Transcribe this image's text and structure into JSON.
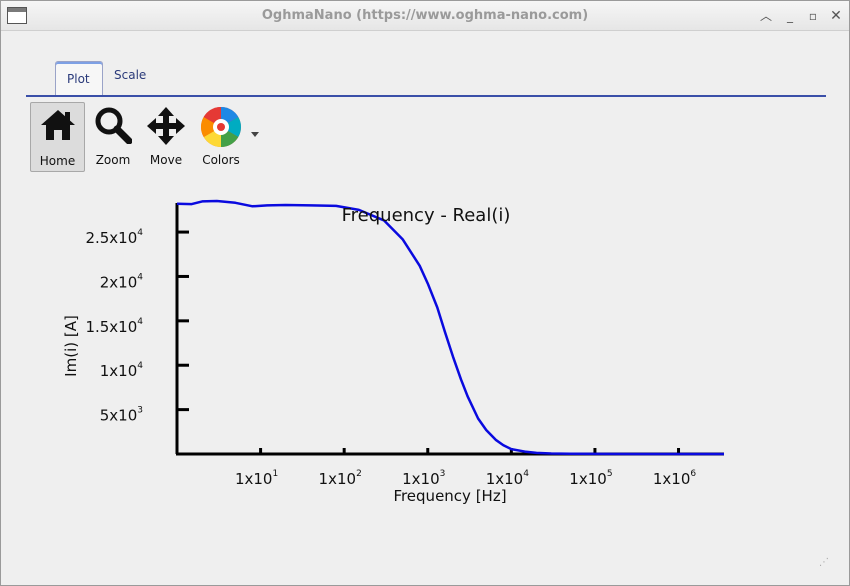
{
  "window": {
    "title": "OghmaNano (https://www.oghma-nano.com)"
  },
  "tabs": [
    {
      "label": "Plot",
      "active": true
    },
    {
      "label": "Scale",
      "active": false
    }
  ],
  "toolbar": {
    "home_label": "Home",
    "zoom_label": "Zoom",
    "move_label": "Move",
    "colors_label": "Colors"
  },
  "chart_data": {
    "type": "line",
    "title": "Frequency - Real(i)",
    "xlabel": "Frequency [Hz]",
    "ylabel": "Im(i) [A]",
    "x_scale": "log",
    "x_ticks": [
      {
        "base": "1x10",
        "exp": "1",
        "value": 10
      },
      {
        "base": "1x10",
        "exp": "2",
        "value": 100
      },
      {
        "base": "1x10",
        "exp": "3",
        "value": 1000
      },
      {
        "base": "1x10",
        "exp": "4",
        "value": 10000
      },
      {
        "base": "1x10",
        "exp": "5",
        "value": 100000
      },
      {
        "base": "1x10",
        "exp": "6",
        "value": 1000000
      }
    ],
    "y_ticks": [
      {
        "base": "5x10",
        "exp": "3",
        "value": 5000
      },
      {
        "base": "1x10",
        "exp": "4",
        "value": 10000
      },
      {
        "base": "1.5x10",
        "exp": "4",
        "value": 15000
      },
      {
        "base": "2x10",
        "exp": "4",
        "value": 20000
      },
      {
        "base": "2.5x10",
        "exp": "4",
        "value": 25000
      }
    ],
    "xlim": [
      1,
      3500000
    ],
    "ylim": [
      0,
      28500
    ],
    "grid": false,
    "series": [
      {
        "color": "#0a0adf",
        "x": [
          1,
          1.5,
          2,
          3,
          5,
          8,
          12,
          20,
          40,
          80,
          150,
          300,
          500,
          800,
          1000,
          1300,
          1600,
          2000,
          2500,
          3000,
          4000,
          5000,
          6500,
          8000,
          10000,
          15000,
          20000,
          30000,
          50000,
          100000,
          300000,
          1000000,
          3500000
        ],
        "y": [
          28200,
          28150,
          28450,
          28500,
          28300,
          27900,
          28000,
          28050,
          28000,
          27950,
          27500,
          26300,
          24200,
          21200,
          19200,
          16500,
          13800,
          11000,
          8400,
          6500,
          4000,
          2700,
          1600,
          1000,
          550,
          250,
          120,
          60,
          30,
          15,
          5,
          0,
          0
        ]
      }
    ]
  }
}
